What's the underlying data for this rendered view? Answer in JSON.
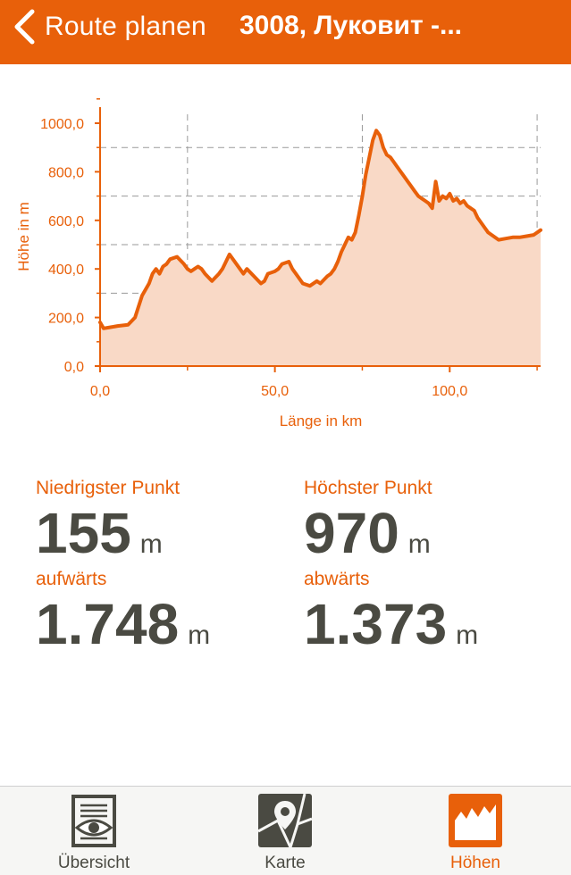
{
  "navbar": {
    "back_label": "Route planen",
    "title": "3008, Луковит -..."
  },
  "chart_data": {
    "type": "area",
    "title": "",
    "xlabel": "Länge in km",
    "ylabel": "Höhe in m",
    "xlim": [
      0,
      126
    ],
    "ylim": [
      0,
      1000
    ],
    "x_tick_labels": [
      "0,0",
      "50,0",
      "100,0"
    ],
    "x_tick_values": [
      0,
      50,
      100
    ],
    "y_tick_labels": [
      "0,0",
      "200,0",
      "400,0",
      "600,0",
      "800,0",
      "1000,0"
    ],
    "y_tick_values": [
      0,
      200,
      400,
      600,
      800,
      1000
    ],
    "grid": true,
    "line_color": "#e8600a",
    "fill_color": "#f9d9c6",
    "x": [
      0,
      1,
      3,
      5,
      8,
      10,
      12,
      14,
      15,
      16,
      17,
      18,
      19,
      20,
      22,
      24,
      25,
      26,
      27,
      28,
      29,
      30,
      32,
      34,
      35,
      36,
      37,
      38,
      40,
      41,
      42,
      44,
      46,
      47,
      48,
      50,
      51,
      52,
      54,
      55,
      56,
      58,
      60,
      62,
      63,
      65,
      66,
      67,
      68,
      69,
      70,
      71,
      72,
      73,
      74,
      75,
      76,
      77,
      78,
      79,
      80,
      81,
      82,
      83,
      84,
      85,
      86,
      87,
      88,
      89,
      90,
      91,
      92,
      93,
      94,
      95,
      96,
      97,
      98,
      99,
      100,
      101,
      102,
      103,
      104,
      105,
      106,
      107,
      108,
      109,
      110,
      111,
      112,
      114,
      116,
      118,
      120,
      122,
      124,
      126
    ],
    "y": [
      180,
      155,
      160,
      165,
      170,
      200,
      290,
      340,
      380,
      400,
      380,
      410,
      420,
      440,
      450,
      420,
      400,
      390,
      400,
      410,
      400,
      380,
      350,
      380,
      400,
      430,
      460,
      440,
      400,
      380,
      400,
      370,
      340,
      350,
      380,
      390,
      400,
      420,
      430,
      400,
      380,
      340,
      330,
      350,
      340,
      370,
      380,
      400,
      430,
      470,
      500,
      530,
      520,
      550,
      620,
      700,
      790,
      860,
      930,
      970,
      950,
      900,
      870,
      860,
      840,
      820,
      800,
      780,
      760,
      740,
      720,
      700,
      690,
      680,
      670,
      650,
      760,
      680,
      700,
      690,
      710,
      680,
      690,
      670,
      680,
      660,
      650,
      640,
      610,
      590,
      570,
      550,
      540,
      520,
      525,
      530,
      530,
      535,
      540,
      560
    ]
  },
  "stats": {
    "lowest": {
      "label": "Niedrigster Punkt",
      "value": "155",
      "unit": "m"
    },
    "highest": {
      "label": "Höchster Punkt",
      "value": "970",
      "unit": "m"
    },
    "ascent": {
      "label": "aufwärts",
      "value": "1.748",
      "unit": "m"
    },
    "descent": {
      "label": "abwärts",
      "value": "1.373",
      "unit": "m"
    }
  },
  "tabs": [
    {
      "label": "Übersicht",
      "icon": "overview-eye-icon"
    },
    {
      "label": "Karte",
      "icon": "map-pin-icon"
    },
    {
      "label": "Höhen",
      "icon": "elevation-profile-icon",
      "active": true
    }
  ],
  "colors": {
    "accent": "#e8600a",
    "text_dark": "#4a4a42",
    "tab_inactive": "#4a4a42"
  }
}
